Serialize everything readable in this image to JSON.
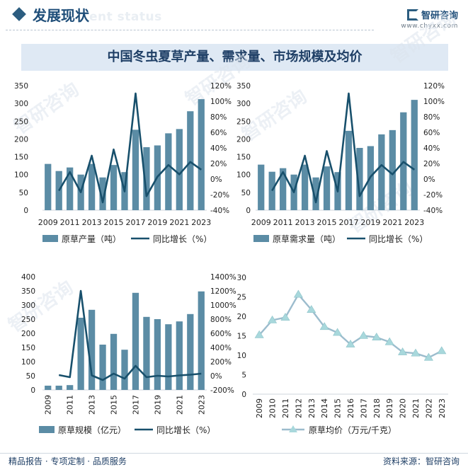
{
  "header": {
    "title": "发展现状",
    "ghost_text": "ent status"
  },
  "brand": {
    "name": "智研咨询",
    "url": "www.chyxx.com"
  },
  "banner": {
    "title": "中国冬虫夏草产量、需求量、市场规模及均价"
  },
  "footer": {
    "left": "精品报告 · 专项定制 · 品质服务",
    "right": "资料来源：智研咨询"
  },
  "watermark": {
    "text": "智研咨询"
  },
  "colors": {
    "bar": "#5b8ca5",
    "line": "#18506c",
    "avg_line": "#9cbccd",
    "avg_marker": "#a8d8dc",
    "brand": "#1f4e79"
  },
  "chart_data": [
    {
      "type": "bar",
      "x": [
        2009,
        2010,
        2011,
        2012,
        2013,
        2014,
        2015,
        2016,
        2017,
        2018,
        2019,
        2020,
        2021,
        2022,
        2023
      ],
      "xticks": [
        "2009",
        "2011",
        "2013",
        "2015",
        "2017",
        "2019",
        "2021",
        "2023"
      ],
      "yticks_left": [
        "0",
        "50",
        "100",
        "150",
        "200",
        "250",
        "300",
        "350"
      ],
      "yticks_right": [
        "-40%",
        "-20%",
        "0%",
        "20%",
        "40%",
        "60%",
        "80%",
        "100%",
        "120%"
      ],
      "ylim_left": [
        0,
        350
      ],
      "ylim_right": [
        -40,
        120
      ],
      "series": [
        {
          "name": "原草产量（吨）",
          "type": "bar",
          "axis": "left",
          "values": [
            130,
            110,
            120,
            100,
            130,
            92,
            127,
            107,
            226,
            177,
            182,
            216,
            228,
            278,
            312
          ]
        },
        {
          "name": "同比增长（%）",
          "type": "line",
          "axis": "right",
          "values": [
            null,
            -15,
            9,
            -17,
            30,
            -30,
            38,
            -16,
            110,
            -22,
            3,
            18,
            6,
            22,
            12
          ]
        }
      ]
    },
    {
      "type": "bar",
      "x": [
        2009,
        2010,
        2011,
        2012,
        2013,
        2014,
        2015,
        2016,
        2017,
        2018,
        2019,
        2020,
        2021,
        2022,
        2023
      ],
      "xticks": [
        "2009",
        "2011",
        "2013",
        "2015",
        "2017",
        "2019",
        "2021",
        "2023"
      ],
      "yticks_left": [
        "0",
        "50",
        "100",
        "150",
        "200",
        "250",
        "300",
        "350"
      ],
      "yticks_right": [
        "-40%",
        "-20%",
        "0%",
        "20%",
        "40%",
        "60%",
        "80%",
        "100%",
        "120%"
      ],
      "ylim_left": [
        0,
        350
      ],
      "ylim_right": [
        -40,
        120
      ],
      "series": [
        {
          "name": "原草需求量（吨）",
          "type": "bar",
          "axis": "left",
          "values": [
            128,
            108,
            118,
            100,
            128,
            92,
            123,
            107,
            223,
            175,
            180,
            213,
            225,
            275,
            310
          ]
        },
        {
          "name": "同比增长（%）",
          "type": "line",
          "axis": "right",
          "values": [
            null,
            -15,
            9,
            -17,
            30,
            -30,
            36,
            -16,
            110,
            -22,
            3,
            18,
            6,
            22,
            12
          ]
        }
      ]
    },
    {
      "type": "bar",
      "x": [
        2009,
        2010,
        2011,
        2012,
        2013,
        2014,
        2015,
        2016,
        2017,
        2018,
        2019,
        2020,
        2021,
        2022,
        2023
      ],
      "xticks": [
        "2009",
        "2011",
        "2013",
        "2015",
        "2017",
        "2019",
        "2021",
        "2023"
      ],
      "yticks_left": [
        "0",
        "50",
        "100",
        "150",
        "200",
        "250",
        "300",
        "350",
        "400"
      ],
      "yticks_right": [
        "-200%",
        "0%",
        "200%",
        "400%",
        "600%",
        "800%",
        "1000%",
        "1200%",
        "1400%"
      ],
      "ylim_left": [
        0,
        400
      ],
      "ylim_right": [
        -200,
        1400
      ],
      "series": [
        {
          "name": "原草规模（亿元）",
          "type": "bar",
          "axis": "left",
          "values": [
            15,
            15,
            17,
            255,
            283,
            160,
            198,
            142,
            343,
            258,
            250,
            232,
            242,
            268,
            348
          ]
        },
        {
          "name": "同比增长（%）",
          "type": "line",
          "axis": "right",
          "values": [
            null,
            10,
            -20,
            1200,
            5,
            -60,
            30,
            -40,
            140,
            -20,
            0,
            -10,
            5,
            15,
            30
          ]
        }
      ]
    },
    {
      "type": "line",
      "x": [
        2009,
        2010,
        2011,
        2012,
        2013,
        2014,
        2015,
        2016,
        2017,
        2018,
        2019,
        2020,
        2021,
        2022,
        2023
      ],
      "xticks": [
        "2009",
        "2010",
        "2011",
        "2012",
        "2013",
        "2014",
        "2015",
        "2016",
        "2017",
        "2018",
        "2019",
        "2020",
        "2021",
        "2022",
        "2023"
      ],
      "yticks": [
        "0",
        "5",
        "10",
        "15",
        "20",
        "25",
        "30"
      ],
      "ylim": [
        0,
        30
      ],
      "series": [
        {
          "name": "原草均价（万元/千克）",
          "values": [
            15.2,
            19.0,
            19.7,
            25.6,
            21.7,
            17.3,
            15.8,
            12.8,
            15.0,
            14.6,
            13.4,
            10.8,
            10.5,
            9.4,
            11.1
          ]
        }
      ]
    }
  ]
}
